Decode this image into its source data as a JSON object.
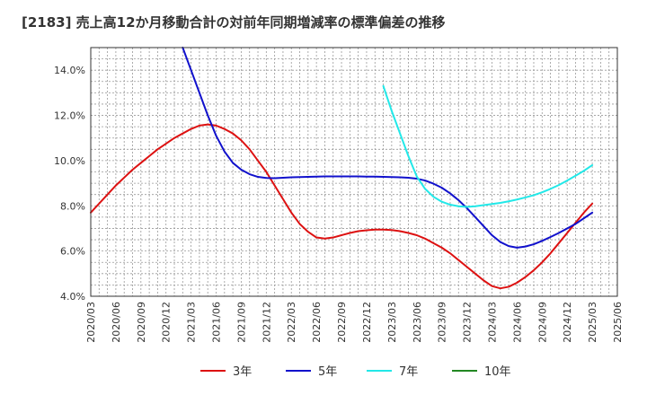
{
  "chart_data": {
    "type": "line",
    "title": "[2183]  売上高12か月移動合計の対前年同期増減率の標準偏差の推移",
    "xlabel": "",
    "ylabel": "",
    "ylim": [
      4.0,
      15.0
    ],
    "yticks": [
      "4.0%",
      "6.0%",
      "8.0%",
      "10.0%",
      "12.0%",
      "14.0%"
    ],
    "ytick_values": [
      4,
      6,
      8,
      10,
      12,
      14
    ],
    "xticks": [
      "2020/03",
      "2020/06",
      "2020/09",
      "2020/12",
      "2021/03",
      "2021/06",
      "2021/09",
      "2021/12",
      "2022/03",
      "2022/06",
      "2022/09",
      "2022/12",
      "2023/03",
      "2023/06",
      "2023/09",
      "2023/12",
      "2024/03",
      "2024/06",
      "2024/09",
      "2024/12",
      "2025/03",
      "2025/06"
    ],
    "grid": true,
    "legend_position": "bottom",
    "series": [
      {
        "name": "3年",
        "color": "#dd1111",
        "x": [
          "2020/03",
          "2020/04",
          "2020/05",
          "2020/06",
          "2020/07",
          "2020/08",
          "2020/09",
          "2020/10",
          "2020/11",
          "2020/12",
          "2021/01",
          "2021/02",
          "2021/03",
          "2021/04",
          "2021/05",
          "2021/06",
          "2021/07",
          "2021/08",
          "2021/09",
          "2021/10",
          "2021/11",
          "2021/12",
          "2022/01",
          "2022/02",
          "2022/03",
          "2022/04",
          "2022/05",
          "2022/06",
          "2022/07",
          "2022/08",
          "2022/09",
          "2022/10",
          "2022/11",
          "2022/12",
          "2023/01",
          "2023/02",
          "2023/03",
          "2023/04",
          "2023/05",
          "2023/06",
          "2023/07",
          "2023/08",
          "2023/09",
          "2023/10",
          "2023/11",
          "2023/12",
          "2024/01",
          "2024/02",
          "2024/03",
          "2024/04",
          "2024/05",
          "2024/06",
          "2024/07",
          "2024/08",
          "2024/09",
          "2024/10",
          "2024/11",
          "2024/12",
          "2025/01",
          "2025/02",
          "2025/03"
        ],
        "values": [
          7.7,
          8.1,
          8.5,
          8.9,
          9.25,
          9.6,
          9.9,
          10.2,
          10.5,
          10.75,
          11.0,
          11.2,
          11.4,
          11.55,
          11.6,
          11.55,
          11.4,
          11.2,
          10.9,
          10.5,
          10.0,
          9.5,
          8.9,
          8.3,
          7.7,
          7.2,
          6.85,
          6.6,
          6.55,
          6.6,
          6.7,
          6.8,
          6.88,
          6.92,
          6.95,
          6.95,
          6.93,
          6.88,
          6.8,
          6.7,
          6.55,
          6.35,
          6.15,
          5.9,
          5.6,
          5.3,
          5.0,
          4.7,
          4.45,
          4.35,
          4.42,
          4.6,
          4.85,
          5.15,
          5.5,
          5.9,
          6.35,
          6.8,
          7.25,
          7.7,
          8.1
        ]
      },
      {
        "name": "5年",
        "color": "#1111cc",
        "x": [
          "2021/02",
          "2021/03",
          "2021/04",
          "2021/05",
          "2021/06",
          "2021/07",
          "2021/08",
          "2021/09",
          "2021/10",
          "2021/11",
          "2021/12",
          "2022/01",
          "2022/02",
          "2022/03",
          "2022/04",
          "2022/05",
          "2022/06",
          "2022/07",
          "2022/08",
          "2022/09",
          "2022/10",
          "2022/11",
          "2022/12",
          "2023/01",
          "2023/02",
          "2023/03",
          "2023/04",
          "2023/05",
          "2023/06",
          "2023/07",
          "2023/08",
          "2023/09",
          "2023/10",
          "2023/11",
          "2023/12",
          "2024/01",
          "2024/02",
          "2024/03",
          "2024/04",
          "2024/05",
          "2024/06",
          "2024/07",
          "2024/08",
          "2024/09",
          "2024/10",
          "2024/11",
          "2024/12",
          "2025/01",
          "2025/02",
          "2025/03"
        ],
        "values": [
          15.0,
          14.0,
          13.0,
          12.0,
          11.1,
          10.4,
          9.9,
          9.6,
          9.4,
          9.28,
          9.23,
          9.22,
          9.24,
          9.26,
          9.27,
          9.28,
          9.29,
          9.3,
          9.3,
          9.3,
          9.3,
          9.3,
          9.29,
          9.29,
          9.28,
          9.27,
          9.26,
          9.24,
          9.2,
          9.12,
          8.98,
          8.8,
          8.55,
          8.25,
          7.9,
          7.5,
          7.1,
          6.7,
          6.4,
          6.22,
          6.15,
          6.2,
          6.3,
          6.45,
          6.62,
          6.8,
          7.0,
          7.2,
          7.45,
          7.7
        ]
      },
      {
        "name": "7年",
        "color": "#22e8e8",
        "x": [
          "2023/02",
          "2023/03",
          "2023/04",
          "2023/05",
          "2023/06",
          "2023/07",
          "2023/08",
          "2023/09",
          "2023/10",
          "2023/11",
          "2023/12",
          "2024/01",
          "2024/02",
          "2024/03",
          "2024/04",
          "2024/05",
          "2024/06",
          "2024/07",
          "2024/08",
          "2024/09",
          "2024/10",
          "2024/11",
          "2024/12",
          "2025/01",
          "2025/02",
          "2025/03"
        ],
        "values": [
          13.3,
          12.2,
          11.2,
          10.2,
          9.3,
          8.75,
          8.4,
          8.18,
          8.05,
          7.98,
          7.95,
          7.98,
          8.03,
          8.08,
          8.13,
          8.2,
          8.28,
          8.37,
          8.47,
          8.6,
          8.75,
          8.92,
          9.12,
          9.33,
          9.55,
          9.8
        ]
      },
      {
        "name": "10年",
        "color": "#228822",
        "x": [],
        "values": []
      }
    ]
  }
}
